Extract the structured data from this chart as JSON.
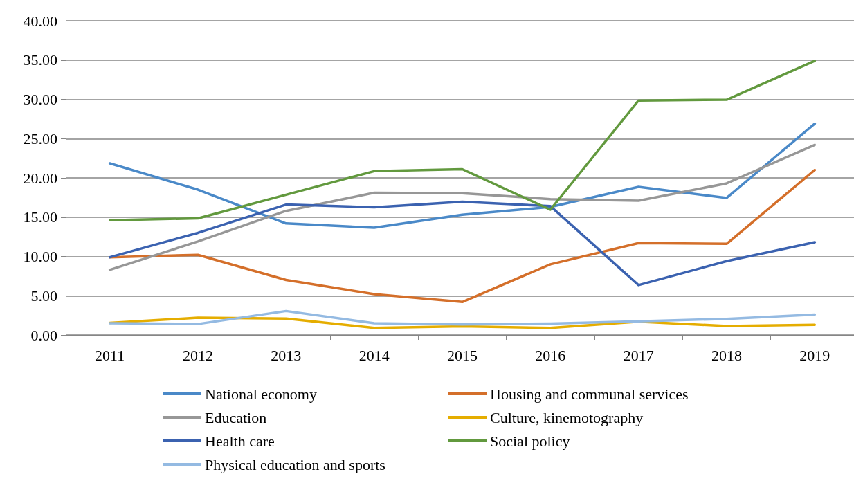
{
  "chart_data": {
    "type": "line",
    "categories": [
      "2011",
      "2012",
      "2013",
      "2014",
      "2015",
      "2016",
      "2017",
      "2018",
      "2019"
    ],
    "series": [
      {
        "name": "National economy",
        "color": "#4a89c8",
        "values": [
          21.85,
          18.5,
          14.2,
          13.65,
          15.3,
          16.3,
          18.85,
          17.45,
          26.9
        ]
      },
      {
        "name": "Housing and communal services",
        "color": "#d46f2a",
        "values": [
          9.9,
          10.2,
          7.0,
          5.2,
          4.2,
          9.0,
          11.7,
          11.6,
          21.0
        ]
      },
      {
        "name": "Education",
        "color": "#979797",
        "values": [
          8.3,
          11.9,
          15.8,
          18.1,
          18.05,
          17.3,
          17.1,
          19.3,
          24.2
        ]
      },
      {
        "name": "Culture, kinemotography",
        "color": "#e5ad00",
        "values": [
          1.55,
          2.2,
          2.1,
          0.9,
          1.1,
          0.9,
          1.7,
          1.15,
          1.3
        ]
      },
      {
        "name": "Health care",
        "color": "#3b62b0",
        "values": [
          9.9,
          13.0,
          16.6,
          16.25,
          16.95,
          16.4,
          6.35,
          9.4,
          11.8
        ]
      },
      {
        "name": "Social policy",
        "color": "#62993e",
        "values": [
          14.6,
          14.85,
          17.85,
          20.85,
          21.1,
          15.95,
          29.85,
          29.95,
          34.9
        ]
      },
      {
        "name": "Physical education and sports",
        "color": "#94bae2",
        "values": [
          1.5,
          1.4,
          3.05,
          1.5,
          1.35,
          1.45,
          1.75,
          2.05,
          2.6
        ]
      }
    ],
    "ylim": [
      0,
      40
    ],
    "yticks": [
      {
        "value": 0,
        "label": "0.00"
      },
      {
        "value": 5,
        "label": "5.00"
      },
      {
        "value": 10,
        "label": "10.00"
      },
      {
        "value": 15,
        "label": "15.00"
      },
      {
        "value": 20,
        "label": "20.00"
      },
      {
        "value": 25,
        "label": "25.00"
      },
      {
        "value": 30,
        "label": "30.00"
      },
      {
        "value": 35,
        "label": "35.00"
      },
      {
        "value": 40,
        "label": "40.00"
      }
    ],
    "grid": "y",
    "legend": "bottom",
    "marker": "none",
    "line_style": "solid"
  }
}
